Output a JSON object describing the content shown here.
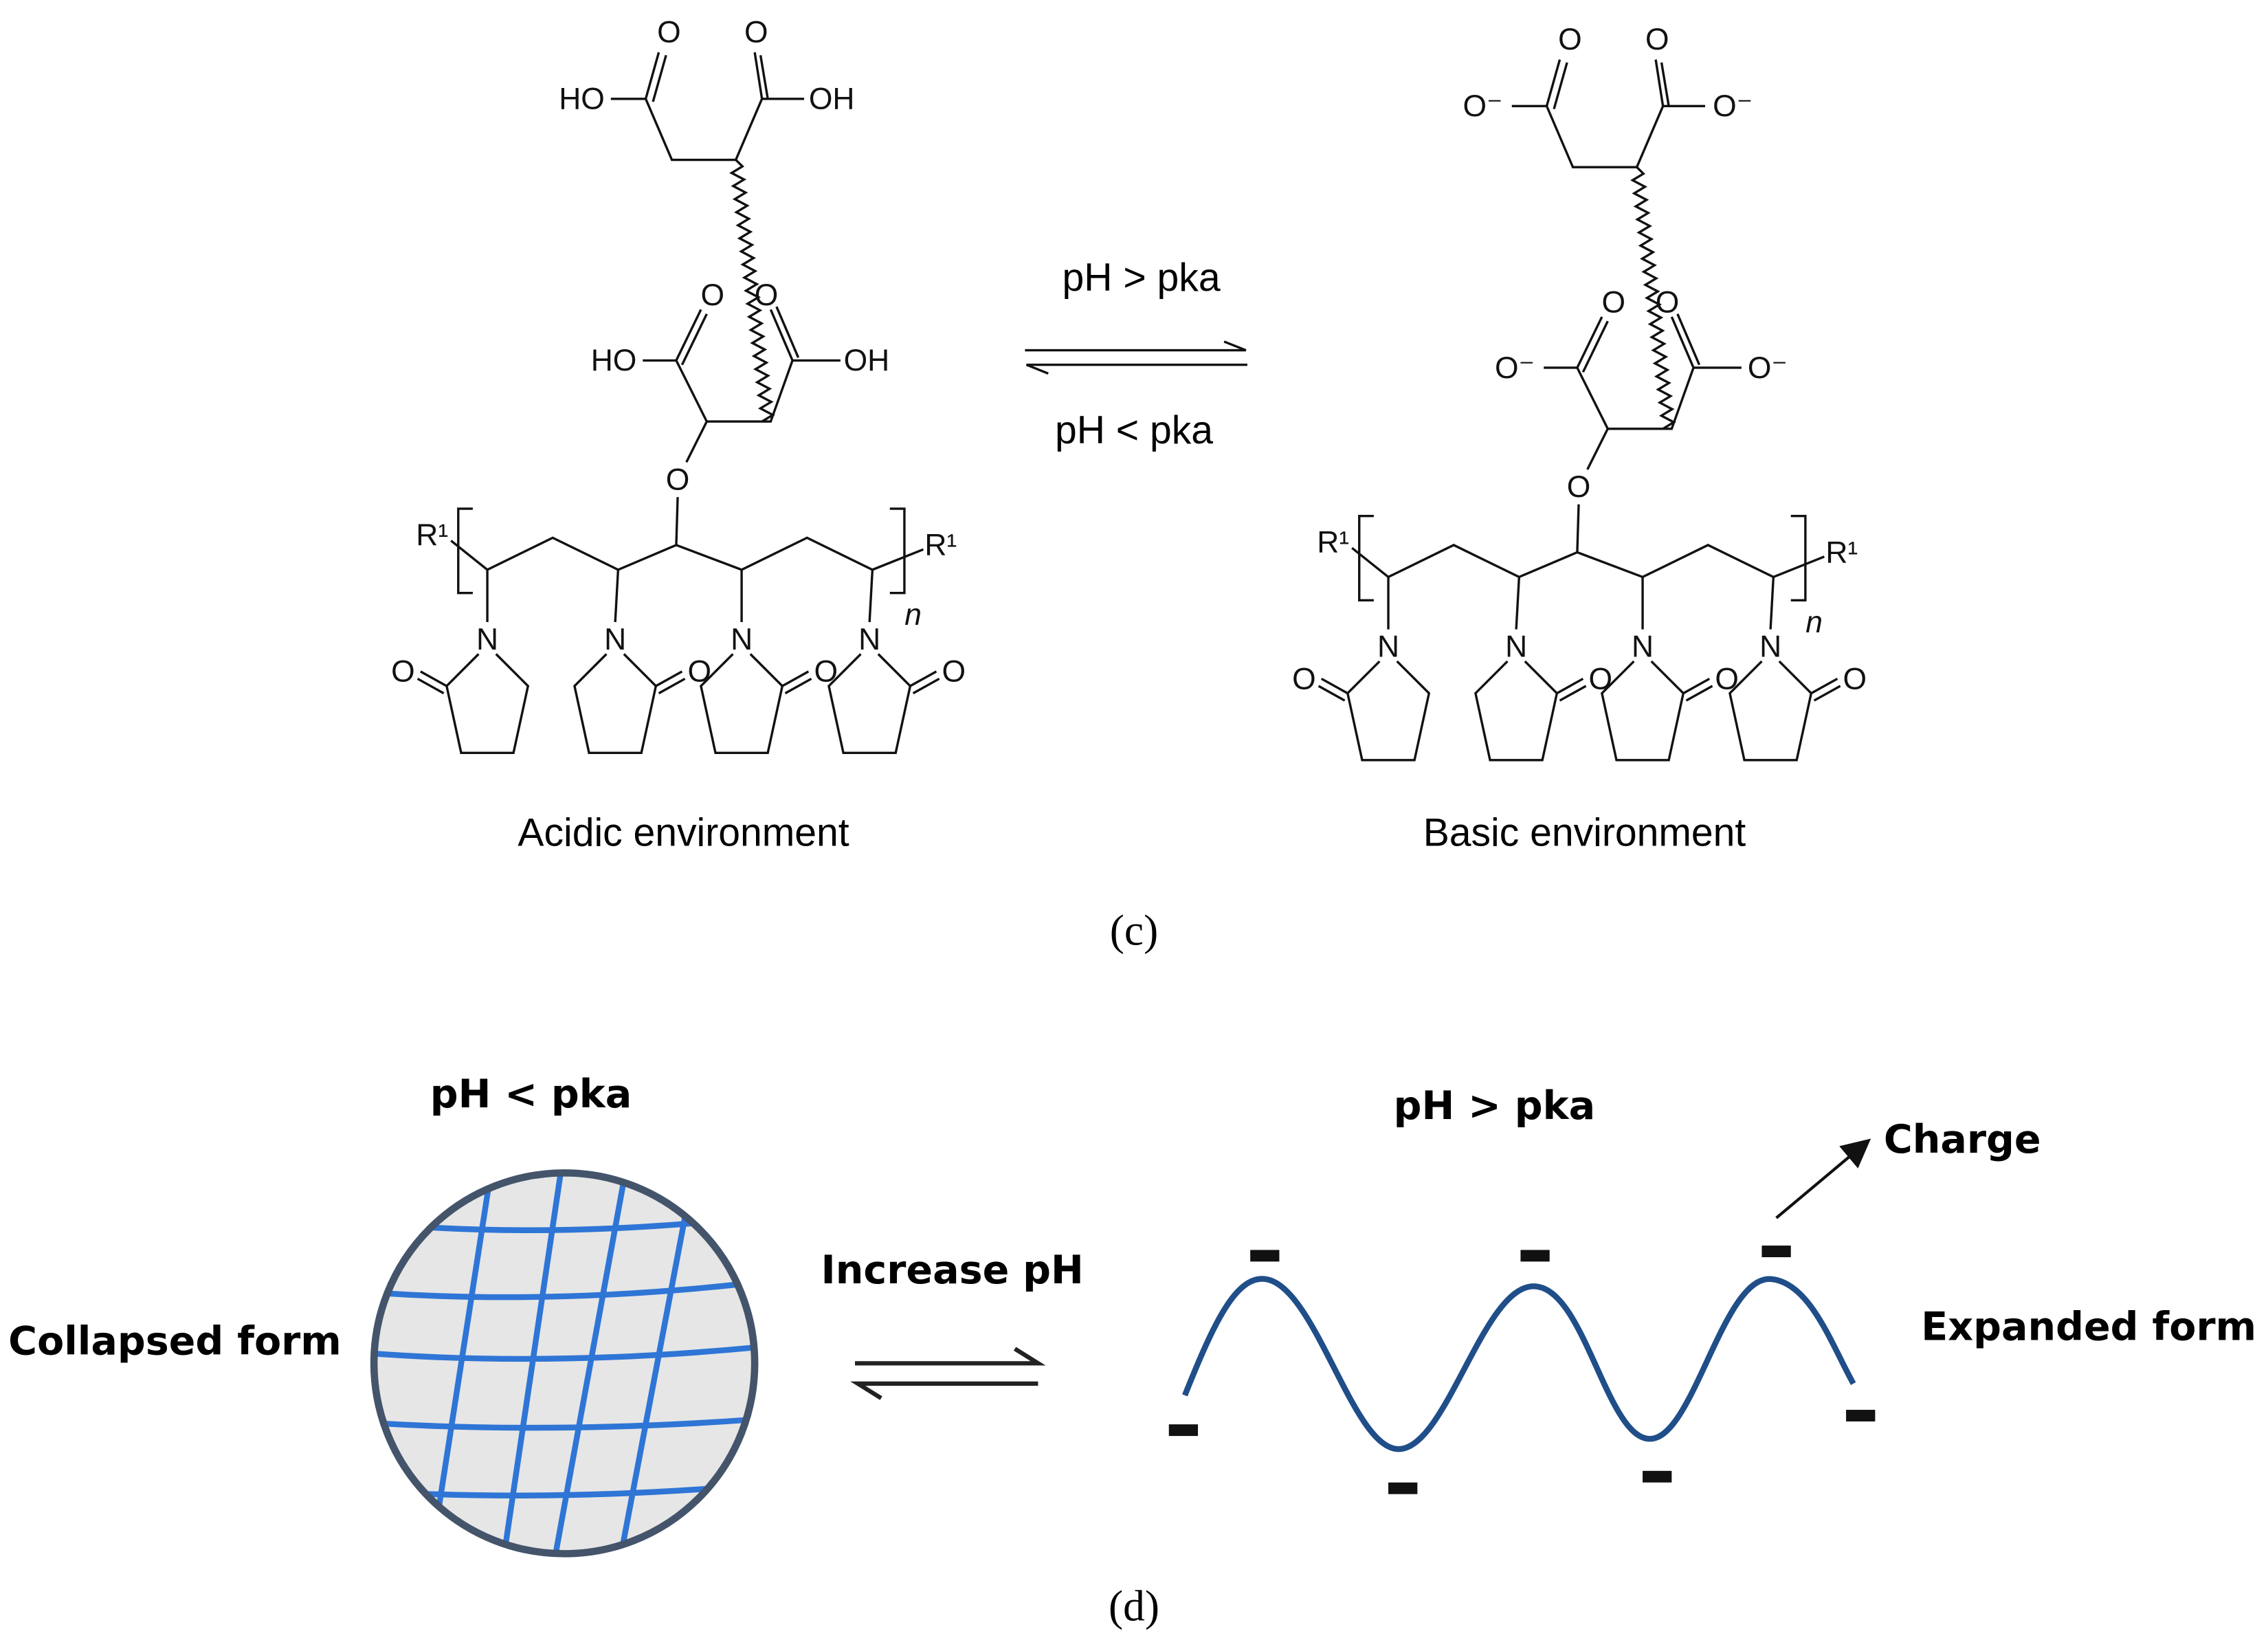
{
  "panel_c": {
    "forward_condition": "pH > pka",
    "reverse_condition": "pH < pka",
    "left_caption": "Acidic environment",
    "right_caption": "Basic environment",
    "label": "(c)",
    "left_structure": {
      "atoms": [
        "HO",
        "O",
        "O",
        "OH",
        "HO",
        "O",
        "O",
        "OH",
        "O",
        "R¹",
        "R¹",
        "n",
        "N",
        "O",
        "N",
        "O",
        "N",
        "O",
        "N",
        "O"
      ]
    },
    "right_structure": {
      "atoms": [
        "O⁻",
        "O",
        "O",
        "O⁻",
        "O⁻",
        "O",
        "O",
        "O⁻",
        "O",
        "R¹",
        "R¹",
        "n",
        "N",
        "O",
        "N",
        "O",
        "N",
        "O",
        "N",
        "O"
      ]
    }
  },
  "panel_d": {
    "left_condition": "pH < pka",
    "right_condition": "pH > pka",
    "left_form": "Collapsed form",
    "right_form": "Expanded form",
    "arrow_label": "Increase pH",
    "charge_label": "Charge",
    "label": "(d)"
  }
}
